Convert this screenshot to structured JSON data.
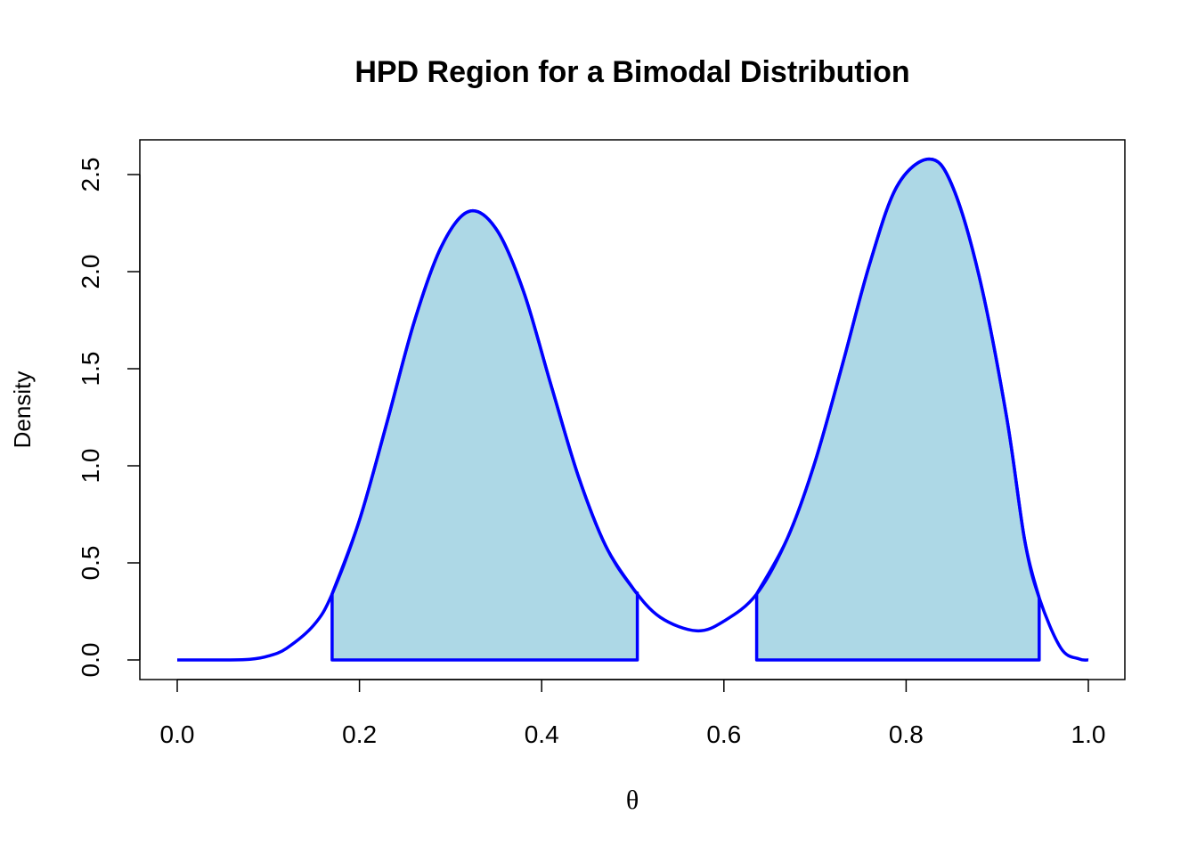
{
  "chart_data": {
    "type": "area",
    "title": "HPD Region for a Bimodal Distribution",
    "xlabel": "θ",
    "ylabel": "Density",
    "xlim": [
      0,
      1
    ],
    "ylim": [
      0,
      2.6
    ],
    "x_ticks": [
      0.0,
      0.2,
      0.4,
      0.6,
      0.8,
      1.0
    ],
    "x_tick_labels": [
      "0.0",
      "0.2",
      "0.4",
      "0.6",
      "0.8",
      "1.0"
    ],
    "y_ticks": [
      0.0,
      0.5,
      1.0,
      1.5,
      2.0,
      2.5
    ],
    "y_tick_labels": [
      "0.0",
      "0.5",
      "1.0",
      "1.5",
      "2.0",
      "2.5"
    ],
    "series": [
      {
        "kind": "density-curve",
        "x": [
          0.0,
          0.05,
          0.08,
          0.1,
          0.12,
          0.15,
          0.17,
          0.2,
          0.23,
          0.26,
          0.29,
          0.32,
          0.35,
          0.38,
          0.41,
          0.44,
          0.47,
          0.5,
          0.53,
          0.57,
          0.6,
          0.636,
          0.67,
          0.7,
          0.73,
          0.76,
          0.79,
          0.825,
          0.85,
          0.88,
          0.91,
          0.93,
          0.946,
          0.97,
          0.99,
          1.0
        ],
        "y": [
          0.0,
          0.0,
          0.003,
          0.02,
          0.06,
          0.18,
          0.34,
          0.72,
          1.22,
          1.74,
          2.13,
          2.31,
          2.22,
          1.9,
          1.42,
          0.95,
          0.59,
          0.37,
          0.22,
          0.15,
          0.2,
          0.34,
          0.63,
          1.02,
          1.52,
          2.04,
          2.44,
          2.58,
          2.45,
          1.98,
          1.26,
          0.62,
          0.32,
          0.06,
          0.005,
          0.0
        ]
      }
    ],
    "hpd_intervals": [
      [
        0.17,
        0.505
      ],
      [
        0.636,
        0.946
      ]
    ],
    "colors": {
      "curve": "#0000ff",
      "fill": "#add8e6"
    }
  }
}
